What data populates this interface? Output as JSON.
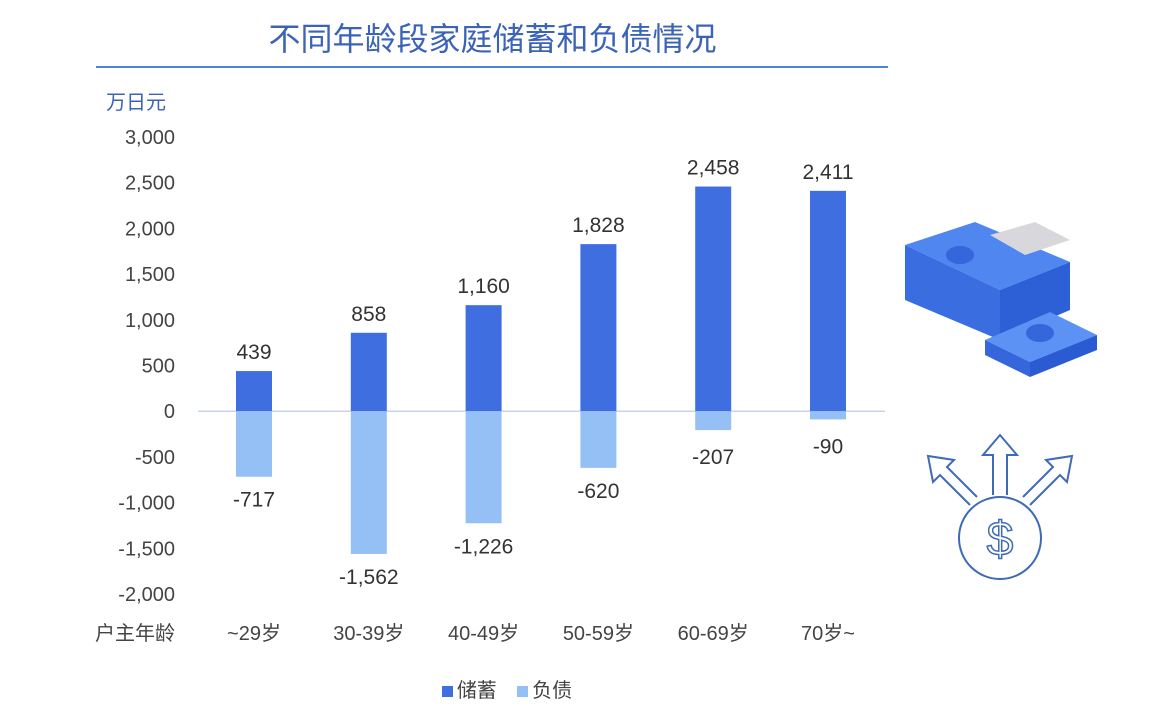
{
  "chart_data": {
    "type": "bar",
    "title": "不同年龄段家庭储蓄和负债情况",
    "ylabel": "万日元",
    "xlabel": "户主年龄",
    "categories": [
      "~29岁",
      "30-39岁",
      "40-49岁",
      "50-59岁",
      "60-69岁",
      "70岁~"
    ],
    "series": [
      {
        "name": "储蓄",
        "values": [
          439,
          858,
          1160,
          1828,
          2458,
          2411
        ],
        "color": "#3f6ee0"
      },
      {
        "name": "负债",
        "values": [
          -717,
          -1562,
          -1226,
          -620,
          -207,
          -90
        ],
        "color": "#94c0f6"
      }
    ],
    "yticks": [
      3000,
      2500,
      2000,
      1500,
      1000,
      500,
      0,
      -500,
      -1000,
      -1500,
      -2000
    ],
    "ylim": [
      -2000,
      3000
    ],
    "grid": false,
    "legend": "bottom"
  },
  "decor": {
    "icons": [
      "money-stack-icon",
      "dollar-arrows-icon"
    ]
  }
}
